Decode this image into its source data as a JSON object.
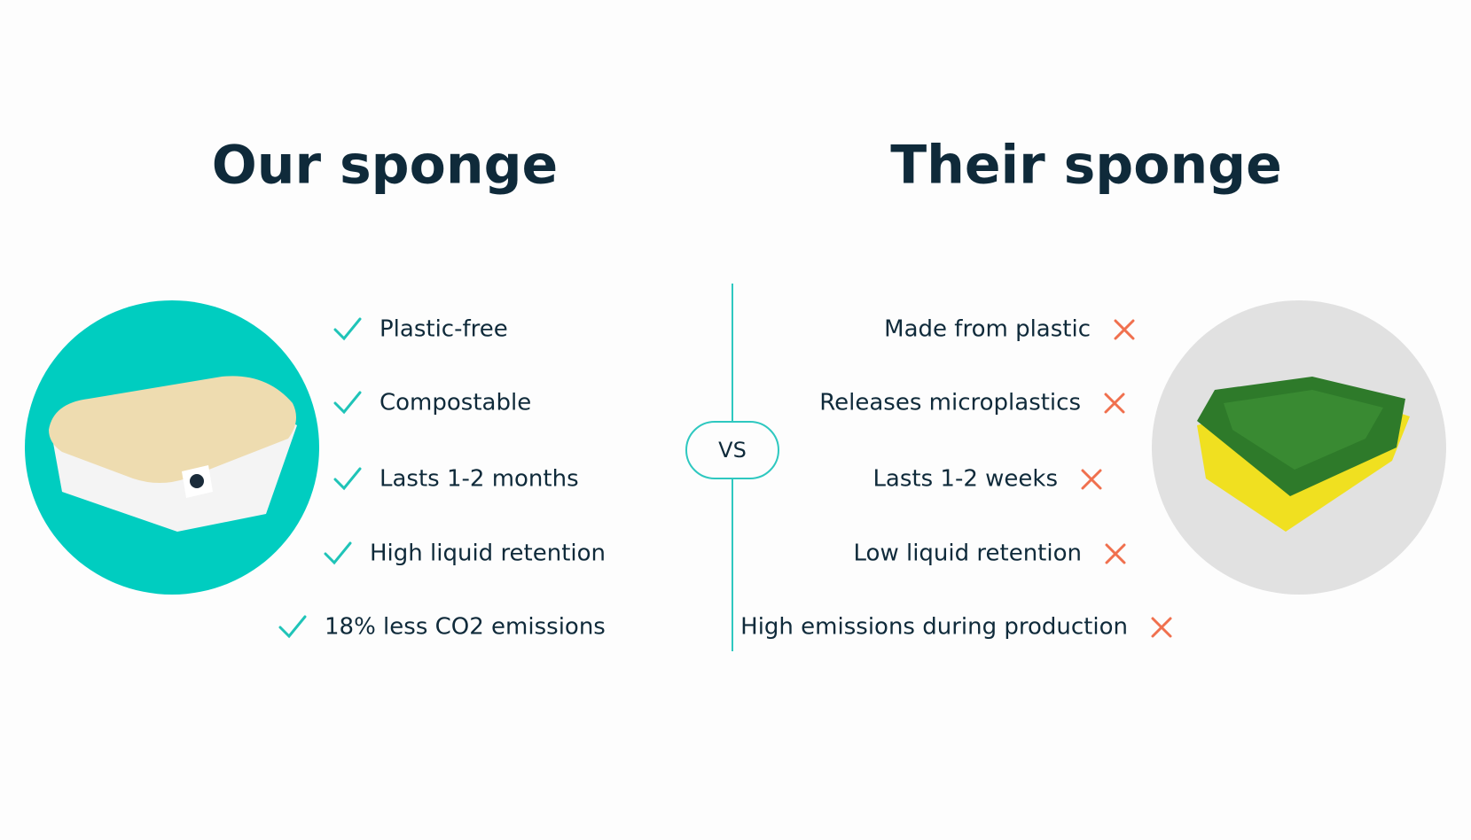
{
  "left": {
    "title": "Our sponge",
    "items": [
      "Plastic-free",
      "Compostable",
      "Lasts 1-2 months",
      "High liquid retention",
      "18% less CO2 emissions"
    ]
  },
  "right": {
    "title": "Their sponge",
    "items": [
      "Made from plastic",
      "Releases microplastics",
      "Lasts 1-2 weeks",
      "Low liquid retention",
      "High emissions during production"
    ]
  },
  "divider": {
    "label": "VS"
  }
}
